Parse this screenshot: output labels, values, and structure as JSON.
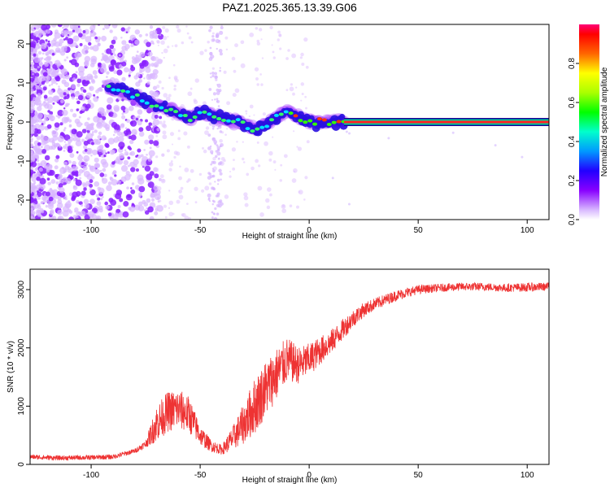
{
  "chart_data": [
    {
      "type": "heatmap",
      "title": "PAZ1.2025.365.13.39.G06",
      "xlabel": "Height of straight line (km)",
      "ylabel": "Frequency (Hz)",
      "xlim": [
        -128,
        110
      ],
      "ylim": [
        -25,
        25
      ],
      "xticks": [
        -100,
        -50,
        0,
        50,
        100
      ],
      "xtick_labels": [
        "-100",
        "-50",
        "0",
        "50",
        "100"
      ],
      "yticks": [
        -20,
        -10,
        0,
        10,
        20
      ],
      "ytick_labels": [
        "-20",
        "-10",
        "0",
        "10",
        "20"
      ],
      "colorbar": {
        "label": "Normalized spectral amplitude",
        "range": [
          0,
          1
        ],
        "ticks": [
          0.0,
          0.2,
          0.4,
          0.6,
          0.8
        ],
        "tick_labels": [
          "0.0",
          "0.2",
          "0.4",
          "0.6",
          "0.8"
        ]
      },
      "ridge": {
        "x": [
          -92,
          -85,
          -78,
          -70,
          -62,
          -55,
          -48,
          -40,
          -32,
          -25,
          -18,
          -10,
          -5,
          0,
          8,
          16
        ],
        "freq": [
          9,
          8,
          6,
          4,
          3,
          1,
          2.5,
          1,
          0,
          -2,
          0,
          3,
          1,
          0,
          0,
          0
        ]
      },
      "band": {
        "x_start": 16,
        "x_end": 110,
        "freq": 0
      }
    },
    {
      "type": "line",
      "xlabel": "Height of straight line (km)",
      "ylabel": "SNR (10 * v/v)",
      "xlim": [
        -128,
        110
      ],
      "ylim": [
        0,
        3350
      ],
      "xticks": [
        -100,
        -50,
        0,
        50,
        100
      ],
      "xtick_labels": [
        "-100",
        "-50",
        "0",
        "50",
        "100"
      ],
      "yticks": [
        0,
        1000,
        2000,
        3000
      ],
      "ytick_labels": [
        "0",
        "1000",
        "2000",
        "3000"
      ],
      "series": [
        {
          "name": "SNR",
          "color": "#ee3333",
          "x": [
            -128,
            -115,
            -100,
            -90,
            -80,
            -75,
            -70,
            -65,
            -60,
            -55,
            -50,
            -45,
            -40,
            -35,
            -30,
            -25,
            -20,
            -15,
            -10,
            -5,
            0,
            5,
            10,
            15,
            20,
            25,
            30,
            40,
            50,
            60,
            70,
            80,
            90,
            100,
            110
          ],
          "y": [
            130,
            110,
            120,
            130,
            230,
            350,
            700,
            900,
            950,
            850,
            500,
            320,
            250,
            450,
            700,
            1000,
            1300,
            1550,
            1800,
            1700,
            1800,
            1950,
            2100,
            2300,
            2500,
            2650,
            2750,
            2900,
            3000,
            3030,
            3050,
            3050,
            3030,
            3040,
            3050
          ],
          "noise": [
            60,
            60,
            60,
            60,
            60,
            90,
            450,
            500,
            500,
            450,
            250,
            150,
            120,
            300,
            500,
            700,
            700,
            650,
            550,
            450,
            400,
            350,
            300,
            260,
            220,
            180,
            150,
            130,
            110,
            100,
            100,
            100,
            100,
            110,
            100
          ]
        }
      ]
    }
  ]
}
